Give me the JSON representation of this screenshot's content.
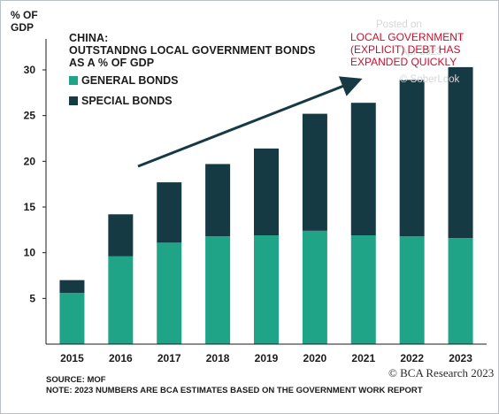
{
  "chart_data": {
    "type": "bar",
    "stacked": true,
    "title_lines": [
      "CHINA:",
      "OUTSTANDNG LOCAL GOVERNMENT BONDS",
      "AS A % OF GDP"
    ],
    "ylabel_lines": [
      "% OF",
      "GDP"
    ],
    "categories": [
      "2015",
      "2016",
      "2017",
      "2018",
      "2019",
      "2020",
      "2021",
      "2022",
      "2023"
    ],
    "series": [
      {
        "name": "GENERAL BONDS",
        "color": "#1fa488",
        "values": [
          5.6,
          9.6,
          11.1,
          11.8,
          11.9,
          12.4,
          11.9,
          11.8,
          11.6
        ]
      },
      {
        "name": "SPECIAL BONDS",
        "color": "#163a44",
        "values": [
          1.4,
          4.6,
          6.6,
          7.9,
          9.5,
          12.8,
          14.5,
          17.1,
          18.7
        ]
      }
    ],
    "ylim": [
      0,
      30
    ],
    "yticks": [
      5,
      10,
      15,
      20,
      25,
      30
    ],
    "grid": false,
    "annotation_lines": [
      "LOCAL GOVERNMENT",
      "(EXPLICIT) DEBT HAS",
      "EXPANDED QUICKLY"
    ],
    "source_lines": [
      "SOURCE: MOF",
      "NOTE: 2023 NUMBERS ARE BCA ESTIMATES BASED ON THE GOVERNMENT WORK REPORT"
    ]
  },
  "logo_text": "© BCA Research 2023",
  "watermark": {
    "line1": "Posted on",
    "line2": "ISABELNET.com",
    "line3": "Shot",
    "line4": "Apr 2023",
    "line5": "© SoberLook"
  }
}
